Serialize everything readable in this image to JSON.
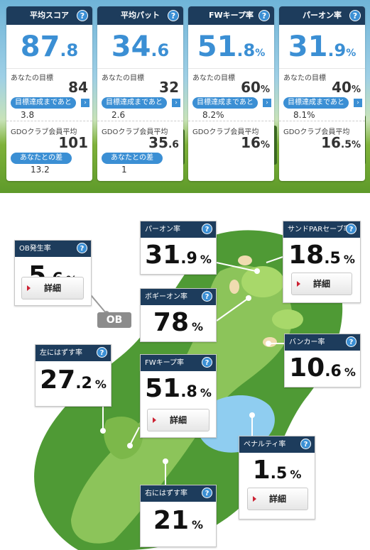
{
  "top_stats": [
    {
      "title": "平均スコア",
      "int": "87",
      "dec": ".8",
      "pct": "",
      "goal_label": "あなたの目標",
      "goal_value": "84",
      "goal_pct": "",
      "remaining_label": "目標達成まであと",
      "remaining_value": "3.8",
      "gdo_label": "GDOクラブ会員平均",
      "gdo_int": "101",
      "gdo_dec": "",
      "gdo_pct": "",
      "diff_label": "あなたとの差",
      "diff_value": "13.2"
    },
    {
      "title": "平均パット",
      "int": "34",
      "dec": ".6",
      "pct": "",
      "goal_label": "あなたの目標",
      "goal_value": "32",
      "goal_pct": "",
      "remaining_label": "目標達成まであと",
      "remaining_value": "2.6",
      "gdo_label": "GDOクラブ会員平均",
      "gdo_int": "35",
      "gdo_dec": ".6",
      "gdo_pct": "",
      "diff_label": "あなたとの差",
      "diff_value": "1"
    },
    {
      "title": "FWキープ率",
      "int": "51",
      "dec": ".8",
      "pct": "%",
      "goal_label": "あなたの目標",
      "goal_value": "60",
      "goal_pct": "%",
      "remaining_label": "目標達成まであと",
      "remaining_value": "8.2%",
      "gdo_label": "GDOクラブ会員平均",
      "gdo_int": "16",
      "gdo_dec": "",
      "gdo_pct": "%",
      "diff_label": "",
      "diff_value": ""
    },
    {
      "title": "パーオン率",
      "int": "31",
      "dec": ".9",
      "pct": "%",
      "goal_label": "あなたの目標",
      "goal_value": "40",
      "goal_pct": "%",
      "remaining_label": "目標達成まであと",
      "remaining_value": "8.1%",
      "gdo_label": "GDOクラブ会員平均",
      "gdo_int": "16",
      "gdo_dec": ".5",
      "gdo_pct": "%",
      "diff_label": "",
      "diff_value": ""
    }
  ],
  "help_icon": "?",
  "arrow_icon": "›",
  "course": {
    "ob_tag": "OB",
    "detail_label": "詳細",
    "ob": {
      "title": "OB発生率",
      "int": "5",
      "dec": ".6",
      "pct": "%"
    },
    "par_on": {
      "title": "パーオン率",
      "int": "31",
      "dec": ".9",
      "pct": "%"
    },
    "sand_par": {
      "title": "サンドPARセーブ率",
      "int": "18",
      "dec": ".5",
      "pct": "%"
    },
    "bogey_on": {
      "title": "ボギーオン率",
      "int": "78",
      "dec": "",
      "pct": "%"
    },
    "bunker": {
      "title": "バンカー率",
      "int": "10",
      "dec": ".6",
      "pct": "%"
    },
    "left_miss": {
      "title": "左にはずす率",
      "int": "27",
      "dec": ".2",
      "pct": "%"
    },
    "fw_keep": {
      "title": "FWキープ率",
      "int": "51",
      "dec": ".8",
      "pct": "%"
    },
    "penalty": {
      "title": "ペナルティ率",
      "int": "1",
      "dec": ".5",
      "pct": "%"
    },
    "right_miss": {
      "title": "右にはずす率",
      "int": "21",
      "dec": "",
      "pct": "%"
    }
  },
  "colors": {
    "navy": "#1d3c5c",
    "accent": "#3b8fd4",
    "fairway": "#8cc45a",
    "rough": "#4f9a35",
    "water": "#8fcdf0"
  }
}
